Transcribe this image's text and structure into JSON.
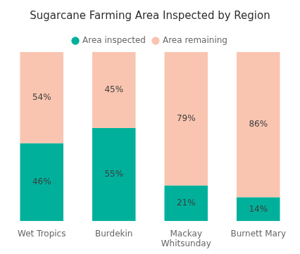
{
  "chart_data": {
    "type": "bar",
    "title": "Sugarcane Farming Area Inspected by Region",
    "categories": [
      "Wet Tropics",
      "Burdekin",
      "Mackay\nWhitsunday",
      "Burnett Mary"
    ],
    "series": [
      {
        "name": "Area inspected",
        "color": "#00b09b",
        "values": [
          46,
          55,
          21,
          14
        ],
        "value_labels": [
          "46%",
          "55%",
          "21%",
          "14%"
        ]
      },
      {
        "name": "Area remaining",
        "color": "#f9c5b0",
        "values": [
          54,
          45,
          79,
          86
        ],
        "value_labels": [
          "54%",
          "45%",
          "79%",
          "86%"
        ]
      }
    ],
    "stacked": true,
    "ylim": [
      0,
      100
    ],
    "grid": false,
    "legend": "top",
    "data_labels": true,
    "tick_labels": "x"
  }
}
